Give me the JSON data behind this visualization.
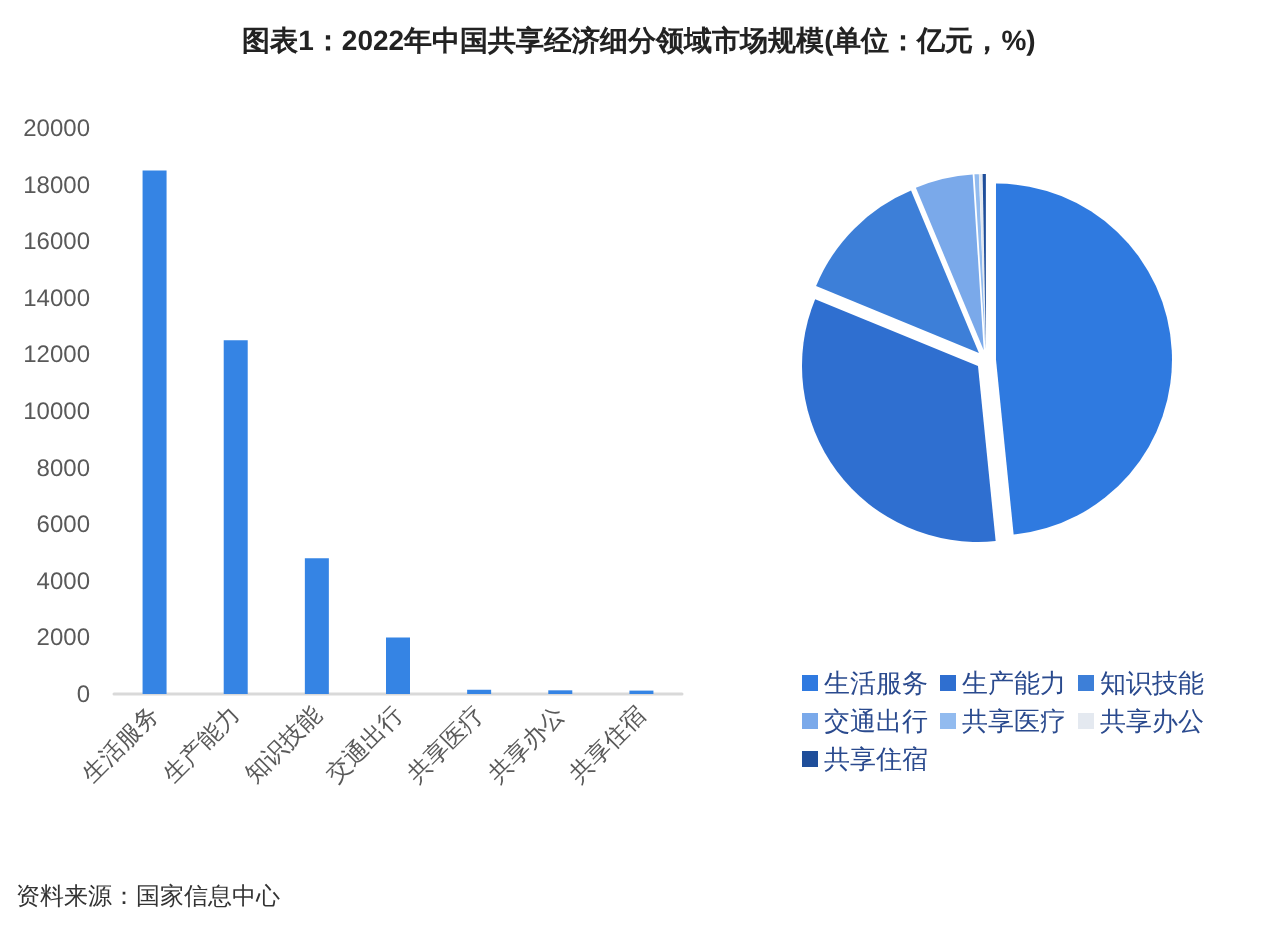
{
  "chart_data": [
    {
      "type": "bar",
      "title": "图表1：2022年中国共享经济细分领域市场规模(单位：亿元，%)",
      "categories": [
        "生活服务",
        "生产能力",
        "知识技能",
        "交通出行",
        "共享医疗",
        "共享办公",
        "共享住宿"
      ],
      "values": [
        18500,
        12500,
        4800,
        2000,
        150,
        130,
        120
      ],
      "color": "#3584e4",
      "ylim": [
        0,
        20000
      ],
      "yticks": [
        0,
        2000,
        4000,
        6000,
        8000,
        10000,
        12000,
        14000,
        16000,
        18000,
        20000
      ],
      "grid": false,
      "annotations": [
        "资料来源：国家信息中心"
      ]
    },
    {
      "type": "pie",
      "categories": [
        "生活服务",
        "生产能力",
        "知识技能",
        "交通出行",
        "共享医疗",
        "共享办公",
        "共享住宿"
      ],
      "values": [
        48.4,
        32.8,
        12.5,
        5.3,
        0.4,
        0.3,
        0.3
      ],
      "colors": [
        "#2f7ae0",
        "#2f6fd0",
        "#3d7fd8",
        "#7aa9ea",
        "#92bbef",
        "#e4e9f0",
        "#1f4e9a"
      ],
      "legend": "bottom"
    }
  ]
}
